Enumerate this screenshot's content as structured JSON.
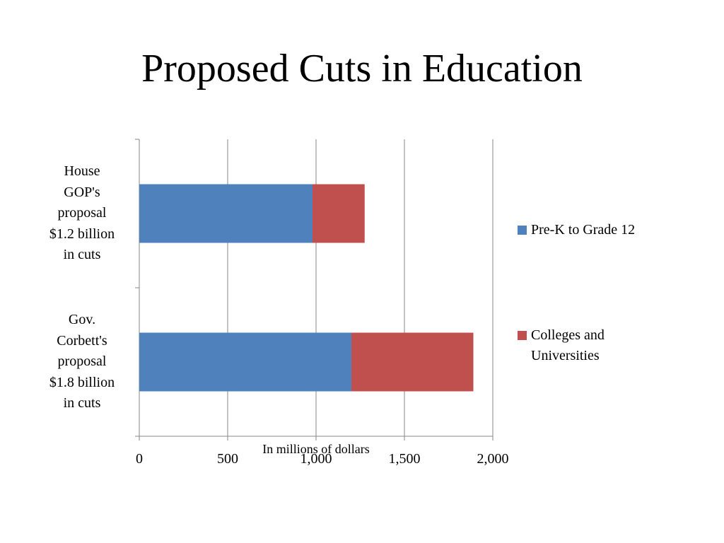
{
  "slide": {
    "title": "Proposed Cuts in Education"
  },
  "chart_data": {
    "type": "bar",
    "orientation": "horizontal",
    "stacked": true,
    "categories": [
      "House\nGOP's\nproposal\n$1.2 billion\nin cuts",
      "Gov.\nCorbett's\nproposal\n$1.8 billion\nin cuts"
    ],
    "series": [
      {
        "name": "Pre-K to Grade 12",
        "values": [
          980,
          1200
        ],
        "color": "#4F81BD"
      },
      {
        "name": "Colleges and Universities",
        "values": [
          295,
          690
        ],
        "color": "#C0504D"
      }
    ],
    "xlabel": "In millions of dollars",
    "xlim": [
      0,
      2000
    ],
    "xticks": [
      0,
      500,
      1000,
      1500,
      2000
    ],
    "xtick_labels": [
      "0",
      "500",
      "1,000",
      "1,500",
      "2,000"
    ],
    "grid": true,
    "legend": "right"
  }
}
